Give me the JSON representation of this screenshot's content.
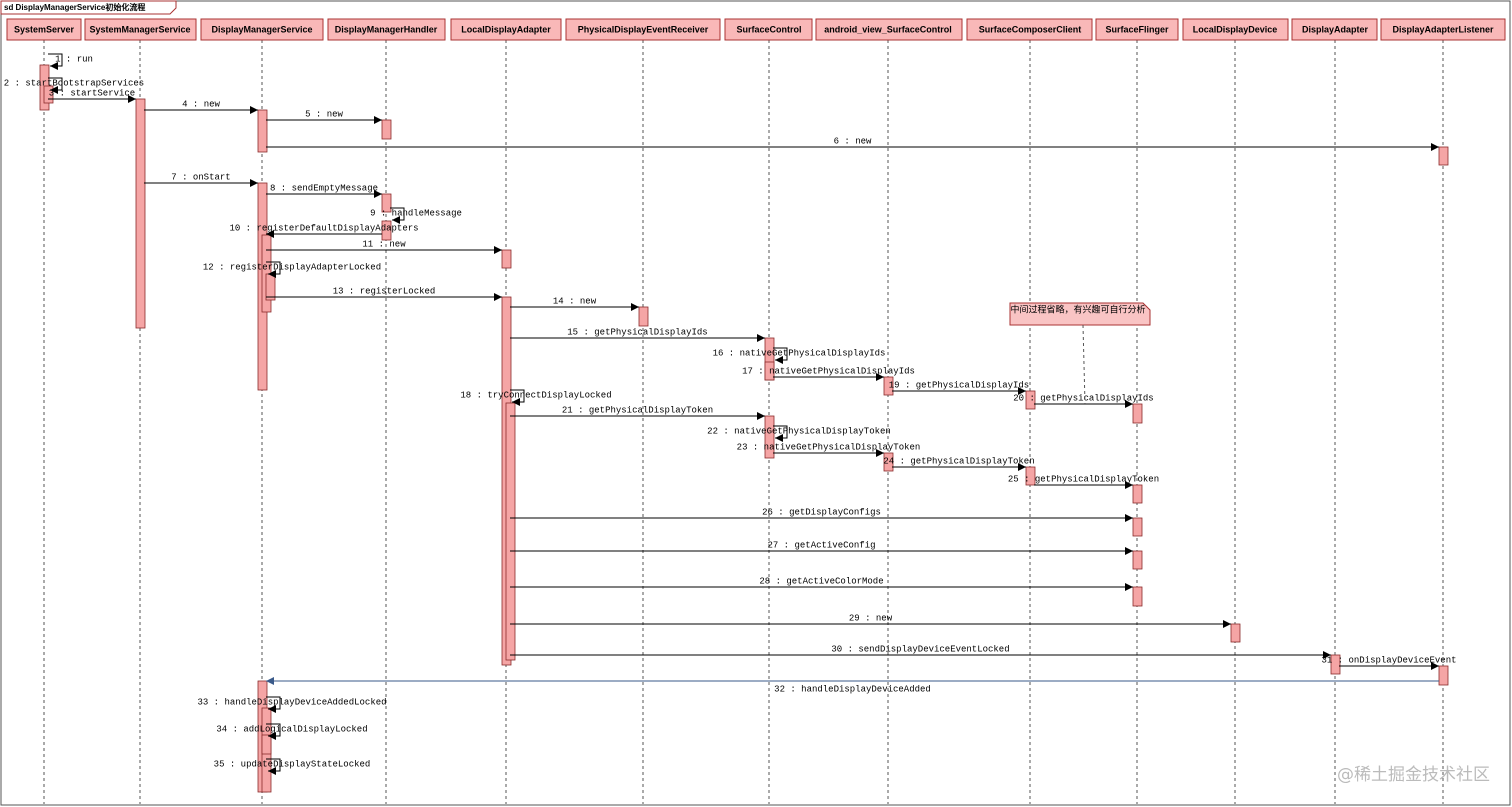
{
  "frame_title": "sd DisplayManagerService初始化流程",
  "participants": [
    "SystemServer",
    "SystemManagerService",
    "DisplayManagerService",
    "DisplayManagerHandler",
    "LocalDisplayAdapter",
    "PhysicalDisplayEventReceiver",
    "SurfaceControl",
    "android_view_SurfaceControl",
    "SurfaceComposerClient",
    "SurfaceFlinger",
    "LocalDisplayDevice",
    "DisplayAdapter",
    "DisplayAdapterListener"
  ],
  "messages": [
    "1 : run",
    "2 : startBootstrapServices",
    "3 : startService",
    "4 : new",
    "5 : new",
    "6 : new",
    "7 : onStart",
    "8 : sendEmptyMessage",
    "9 : handleMessage",
    "10 : registerDefaultDisplayAdapters",
    "11 : new",
    "12 : registerDisplayAdapterLocked",
    "13 : registerLocked",
    "14 : new",
    "15 : getPhysicalDisplayIds",
    "16 : nativeGetPhysicalDisplayIds",
    "17 : nativeGetPhysicalDisplayIds",
    "18 : tryConnectDisplayLocked",
    "19 : getPhysicalDisplayIds",
    "20 : getPhysicalDisplayIds",
    "21 : getPhysicalDisplayToken",
    "22 : nativeGetPhysicalDisplayToken",
    "23 : nativeGetPhysicalDisplayToken",
    "24 : getPhysicalDisplayToken",
    "25 : getPhysicalDisplayToken",
    "26 : getDisplayConfigs",
    "27 : getActiveConfig",
    "28 : getActiveColorMode",
    "29 : new",
    "30 : sendDisplayDeviceEventLocked",
    "31 : onDisplayDeviceEvent",
    "32 : handleDisplayDeviceAdded",
    "33 : handleDisplayDeviceAddedLocked",
    "34 : addLogicalDisplayLocked",
    "35 : updateDisplayStateLocked"
  ],
  "note": "中间过程省略，有兴趣可自行分析",
  "watermark": "@稀土掘金技术社区"
}
